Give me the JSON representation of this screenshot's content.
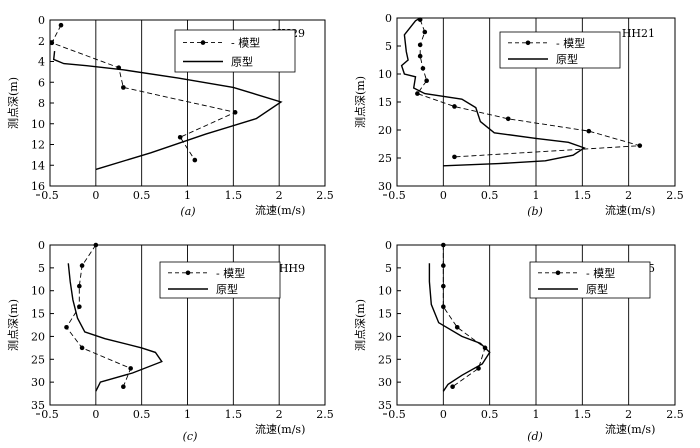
{
  "legend": {
    "model_label": "模型",
    "prototype_label": "原型"
  },
  "chart_data": [
    {
      "type": "line",
      "station": "HH29",
      "caption": "(a)",
      "xlabel": "流速(m/s)",
      "ylabel": "测点深(m)",
      "xlim": [
        -0.5,
        2.5
      ],
      "ylim": [
        0,
        16
      ],
      "xticks": [
        -0.5,
        0,
        0.5,
        1,
        1.5,
        2,
        2.5
      ],
      "xtick_labels": [
        "0.5",
        "0",
        "0.5",
        "1",
        "1.5",
        "2",
        "2.5"
      ],
      "yticks": [
        0,
        2,
        4,
        6,
        8,
        10,
        12,
        14,
        16
      ],
      "ytick_labels": [
        "0",
        "2",
        "4",
        "6",
        "8",
        "10",
        "12",
        "14",
        "16"
      ],
      "grid": "vertical",
      "legend_position": "top-center",
      "series": [
        {
          "name": "模型",
          "style": "dash-dot-markers",
          "points": [
            [
              -0.38,
              0.5
            ],
            [
              -0.48,
              2.2
            ],
            [
              0.25,
              4.6
            ],
            [
              0.3,
              6.5
            ],
            [
              1.52,
              8.9
            ],
            [
              0.92,
              11.3
            ],
            [
              1.08,
              13.5
            ]
          ]
        },
        {
          "name": "原型",
          "style": "solid",
          "points": [
            [
              -0.45,
              3.0
            ],
            [
              -0.46,
              3.8
            ],
            [
              -0.35,
              4.2
            ],
            [
              -0.1,
              4.4
            ],
            [
              0.3,
              4.8
            ],
            [
              0.9,
              5.6
            ],
            [
              1.5,
              6.5
            ],
            [
              2.02,
              7.9
            ],
            [
              1.75,
              9.5
            ],
            [
              1.2,
              11.0
            ],
            [
              0.6,
              12.8
            ],
            [
              0.0,
              14.4
            ]
          ]
        }
      ]
    },
    {
      "type": "line",
      "station": "HH21",
      "caption": "(b)",
      "xlabel": "流速(m/s)",
      "ylabel": "测点深(m)",
      "xlim": [
        -0.5,
        2.5
      ],
      "ylim": [
        0,
        30
      ],
      "xticks": [
        -0.5,
        0,
        0.5,
        1,
        1.5,
        2,
        2.5
      ],
      "xtick_labels": [
        "0.5",
        "0",
        "0.5",
        "1",
        "1.5",
        "2",
        "2.5"
      ],
      "yticks": [
        0,
        5,
        10,
        15,
        20,
        25,
        30
      ],
      "ytick_labels": [
        "0",
        "5",
        "10",
        "15",
        "20",
        "25",
        "30"
      ],
      "grid": "vertical",
      "legend_position": "top-center",
      "series": [
        {
          "name": "模型",
          "style": "dash-dot-markers",
          "points": [
            [
              -0.25,
              0.3
            ],
            [
              -0.2,
              2.5
            ],
            [
              -0.25,
              4.8
            ],
            [
              -0.25,
              6.8
            ],
            [
              -0.22,
              9.0
            ],
            [
              -0.18,
              11.2
            ],
            [
              -0.28,
              13.5
            ],
            [
              0.12,
              15.8
            ],
            [
              0.7,
              18.0
            ],
            [
              1.57,
              20.2
            ],
            [
              2.12,
              22.8
            ],
            [
              0.12,
              24.8
            ]
          ]
        },
        {
          "name": "原型",
          "style": "solid",
          "points": [
            [
              -0.25,
              0.0
            ],
            [
              -0.3,
              0.5
            ],
            [
              -0.42,
              3.0
            ],
            [
              -0.4,
              6.0
            ],
            [
              -0.38,
              7.5
            ],
            [
              -0.45,
              8.5
            ],
            [
              -0.42,
              10.0
            ],
            [
              -0.3,
              10.5
            ],
            [
              -0.32,
              12.5
            ],
            [
              -0.2,
              13.5
            ],
            [
              0.2,
              14.5
            ],
            [
              0.35,
              16.0
            ],
            [
              0.4,
              18.5
            ],
            [
              0.55,
              20.5
            ],
            [
              1.0,
              21.5
            ],
            [
              1.35,
              22.2
            ],
            [
              1.52,
              23.2
            ],
            [
              1.4,
              24.5
            ],
            [
              1.1,
              25.5
            ],
            [
              0.6,
              26.0
            ],
            [
              0.0,
              26.4
            ]
          ]
        }
      ]
    },
    {
      "type": "line",
      "station": "HH9",
      "caption": "(c)",
      "xlabel": "流速(m/s)",
      "ylabel": "测点深(m)",
      "xlim": [
        -0.5,
        2.5
      ],
      "ylim": [
        0,
        35
      ],
      "xticks": [
        -0.5,
        0,
        0.5,
        1,
        1.5,
        2,
        2.5
      ],
      "xtick_labels": [
        "0.5",
        "0",
        "0.5",
        "1",
        "1.5",
        "2",
        "2.5"
      ],
      "yticks": [
        0,
        5,
        10,
        15,
        20,
        25,
        30,
        35
      ],
      "ytick_labels": [
        "0",
        "5",
        "10",
        "15",
        "20",
        "25",
        "30",
        "35"
      ],
      "grid": "vertical",
      "legend_position": "top-center",
      "series": [
        {
          "name": "模型",
          "style": "dash-dot-markers",
          "points": [
            [
              0.0,
              0.0
            ],
            [
              -0.15,
              4.5
            ],
            [
              -0.18,
              9.0
            ],
            [
              -0.18,
              13.5
            ],
            [
              -0.32,
              18.0
            ],
            [
              -0.15,
              22.5
            ],
            [
              0.38,
              27.0
            ],
            [
              0.3,
              31.0
            ]
          ]
        },
        {
          "name": "原型",
          "style": "solid",
          "points": [
            [
              -0.3,
              4.0
            ],
            [
              -0.28,
              8.0
            ],
            [
              -0.25,
              12.0
            ],
            [
              -0.2,
              16.0
            ],
            [
              -0.12,
              19.0
            ],
            [
              0.1,
              20.5
            ],
            [
              0.5,
              22.5
            ],
            [
              0.65,
              23.5
            ],
            [
              0.72,
              25.5
            ],
            [
              0.4,
              28.0
            ],
            [
              0.05,
              30.0
            ],
            [
              0.0,
              32.0
            ]
          ]
        }
      ]
    },
    {
      "type": "line",
      "station": "HH5",
      "caption": "(d)",
      "xlabel": "流速(m/s)",
      "ylabel": "测点深(m)",
      "xlim": [
        -0.5,
        2.5
      ],
      "ylim": [
        0,
        35
      ],
      "xticks": [
        -0.5,
        0,
        0.5,
        1,
        1.5,
        2,
        2.5
      ],
      "xtick_labels": [
        "0.5",
        "0",
        "0.5",
        "1",
        "1.5",
        "2",
        "2.5"
      ],
      "yticks": [
        0,
        5,
        10,
        15,
        20,
        25,
        30,
        35
      ],
      "ytick_labels": [
        "0",
        "5",
        "10",
        "15",
        "20",
        "25",
        "30",
        "35"
      ],
      "grid": "vertical",
      "legend_position": "top-right",
      "series": [
        {
          "name": "模型",
          "style": "dash-dot-markers",
          "points": [
            [
              0.0,
              0.0
            ],
            [
              0.0,
              4.5
            ],
            [
              0.0,
              9.0
            ],
            [
              0.0,
              13.5
            ],
            [
              0.15,
              18.0
            ],
            [
              0.45,
              22.5
            ],
            [
              0.38,
              27.0
            ],
            [
              0.1,
              31.0
            ]
          ]
        },
        {
          "name": "原型",
          "style": "solid",
          "points": [
            [
              -0.15,
              4.0
            ],
            [
              -0.15,
              8.0
            ],
            [
              -0.13,
              13.0
            ],
            [
              -0.05,
              17.0
            ],
            [
              0.2,
              20.0
            ],
            [
              0.4,
              21.5
            ],
            [
              0.5,
              23.5
            ],
            [
              0.42,
              26.0
            ],
            [
              0.2,
              28.5
            ],
            [
              0.05,
              30.5
            ],
            [
              0.0,
              32.0
            ]
          ]
        }
      ]
    }
  ]
}
